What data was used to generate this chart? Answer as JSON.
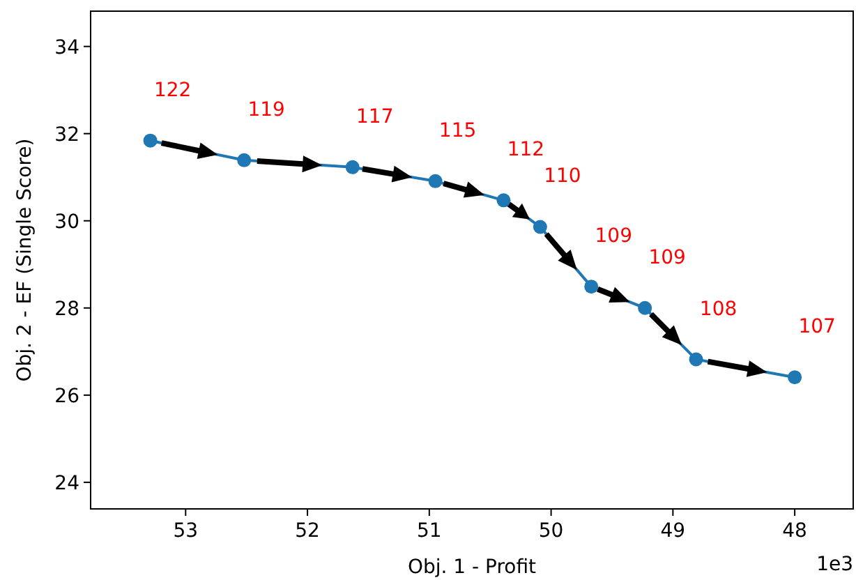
{
  "chart_data": {
    "type": "line",
    "xlabel": "Obj. 1 - Profit",
    "ylabel": "Obj. 2 - EF (Single Score)",
    "x": [
      53.29,
      52.52,
      51.63,
      50.95,
      50.39,
      50.09,
      49.67,
      49.23,
      48.81,
      48.0
    ],
    "series": [
      {
        "color": "#1f77b4",
        "values": [
          31.84,
          31.39,
          31.23,
          30.91,
          30.47,
          29.86,
          28.49,
          28.0,
          26.82,
          26.41
        ]
      }
    ],
    "xlim": [
      53.78,
      47.52
    ],
    "ylim": [
      23.39,
      34.81
    ],
    "xticks": [
      53,
      52,
      51,
      50,
      49,
      48
    ],
    "yticks": [
      24,
      26,
      28,
      30,
      32,
      34
    ],
    "annotations": [
      {
        "text": "122",
        "x": 53.29,
        "y": 31.84
      },
      {
        "text": "119",
        "x": 52.52,
        "y": 31.39
      },
      {
        "text": "117",
        "x": 51.63,
        "y": 31.23
      },
      {
        "text": "115",
        "x": 50.95,
        "y": 30.91
      },
      {
        "text": "112",
        "x": 50.39,
        "y": 30.47
      },
      {
        "text": "110",
        "x": 50.09,
        "y": 29.86
      },
      {
        "text": "109",
        "x": 49.67,
        "y": 28.49
      },
      {
        "text": "109",
        "x": 49.23,
        "y": 28.0
      },
      {
        "text": "108",
        "x": 48.81,
        "y": 26.82
      },
      {
        "text": "107",
        "x": 48.0,
        "y": 26.41
      },
      "1e3"
    ],
    "marker": "circle",
    "line_style": "solid",
    "grid": false
  }
}
